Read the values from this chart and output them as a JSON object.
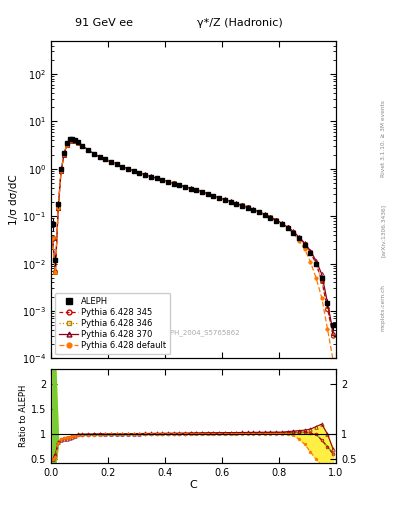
{
  "title_left": "91 GeV ee",
  "title_right": "γ*/Z (Hadronic)",
  "ylabel_main": "1/σ dσ/dC",
  "ylabel_ratio": "Ratio to ALEPH",
  "xlabel": "C",
  "rivet_label": "Rivet 3.1.10, ≥ 3M events",
  "arxiv_label": "[arXiv:1306.3436]",
  "mcplots_label": "mcplots.cern.ch",
  "ref_label": "ALEPH_2004_S5765862",
  "ylim_main": [
    0.0001,
    500
  ],
  "ylim_ratio": [
    0.42,
    2.3
  ],
  "legend_entries": [
    "ALEPH",
    "Pythia 6.428 345",
    "Pythia 6.428 346",
    "Pythia 6.428 370",
    "Pythia 6.428 default"
  ],
  "aleph_color": "#000000",
  "p345_color": "#cc0000",
  "p346_color": "#bb8800",
  "p370_color": "#880022",
  "pdef_color": "#ff7700",
  "band_green": "#77cc33",
  "band_yellow": "#ffee44",
  "C_data": [
    0.005,
    0.015,
    0.025,
    0.035,
    0.045,
    0.055,
    0.065,
    0.075,
    0.085,
    0.095,
    0.11,
    0.13,
    0.15,
    0.17,
    0.19,
    0.21,
    0.23,
    0.25,
    0.27,
    0.29,
    0.31,
    0.33,
    0.35,
    0.37,
    0.39,
    0.41,
    0.43,
    0.45,
    0.47,
    0.49,
    0.51,
    0.53,
    0.55,
    0.57,
    0.59,
    0.61,
    0.63,
    0.65,
    0.67,
    0.69,
    0.71,
    0.73,
    0.75,
    0.77,
    0.79,
    0.81,
    0.83,
    0.85,
    0.87,
    0.89,
    0.91,
    0.93,
    0.95,
    0.97,
    0.99
  ],
  "aleph_y": [
    0.07,
    0.012,
    0.18,
    1.0,
    2.2,
    3.5,
    4.2,
    4.3,
    4.0,
    3.6,
    3.1,
    2.5,
    2.1,
    1.8,
    1.6,
    1.4,
    1.25,
    1.1,
    1.0,
    0.9,
    0.82,
    0.75,
    0.68,
    0.63,
    0.58,
    0.53,
    0.49,
    0.45,
    0.41,
    0.38,
    0.35,
    0.32,
    0.29,
    0.265,
    0.24,
    0.22,
    0.2,
    0.18,
    0.165,
    0.15,
    0.135,
    0.12,
    0.105,
    0.092,
    0.08,
    0.068,
    0.056,
    0.045,
    0.034,
    0.025,
    0.017,
    0.01,
    0.005,
    0.0015,
    0.0005
  ],
  "aleph_yerr": [
    0.02,
    0.003,
    0.03,
    0.05,
    0.1,
    0.15,
    0.15,
    0.15,
    0.12,
    0.1,
    0.08,
    0.06,
    0.05,
    0.04,
    0.035,
    0.03,
    0.025,
    0.022,
    0.02,
    0.018,
    0.016,
    0.014,
    0.012,
    0.011,
    0.01,
    0.009,
    0.008,
    0.007,
    0.007,
    0.006,
    0.006,
    0.005,
    0.005,
    0.004,
    0.004,
    0.004,
    0.003,
    0.003,
    0.003,
    0.003,
    0.002,
    0.002,
    0.002,
    0.002,
    0.002,
    0.002,
    0.001,
    0.001,
    0.001,
    0.001,
    0.001,
    0.001,
    0.0005,
    0.0003,
    0.0001
  ]
}
